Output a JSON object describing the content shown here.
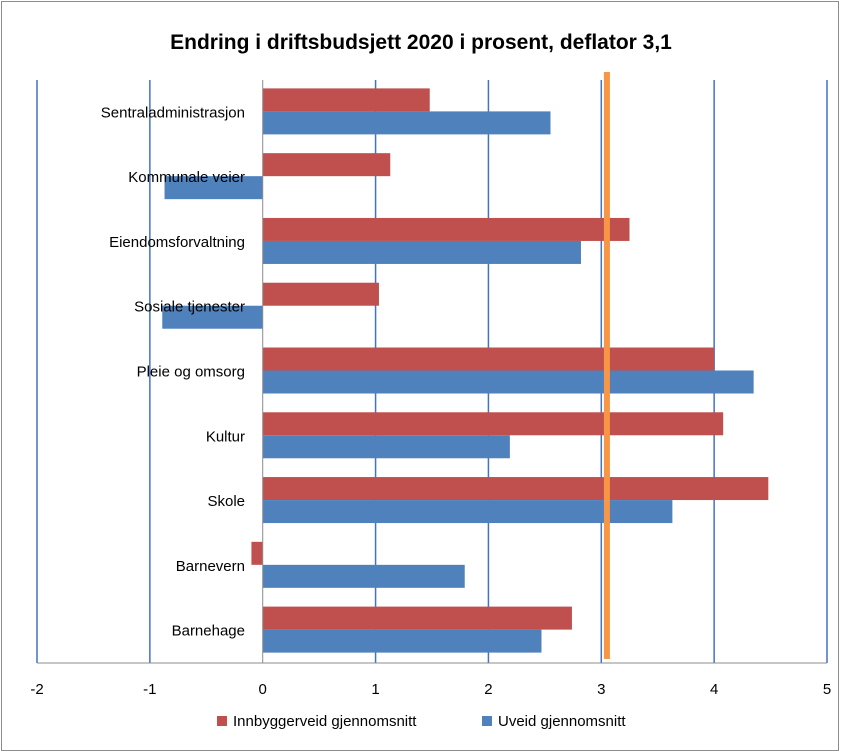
{
  "chart_data": {
    "type": "bar",
    "orientation": "horizontal",
    "title": "Endring i driftsbudsjett 2020 i prosent, deflator 3,1",
    "xlabel": "",
    "ylabel": "",
    "xlim": [
      -2,
      5
    ],
    "x_ticks": [
      "-2",
      "-1",
      "0",
      "1",
      "2",
      "3",
      "4",
      "5"
    ],
    "categories": [
      "Sentraladministrasjon",
      "Kommunale veier",
      "Eiendomsforvaltning",
      "Sosiale tjenester",
      "Pleie og omsorg",
      "Kultur",
      "Skole",
      "Barnevern",
      "Barnehage"
    ],
    "series": [
      {
        "name": "Innbyggerveid gjennomsnitt",
        "color": "#c0504d",
        "values": [
          1.48,
          1.13,
          3.25,
          1.03,
          4.0,
          4.08,
          4.48,
          -0.1,
          2.74
        ]
      },
      {
        "name": "Uveid gjennomsnitt",
        "color": "#4f81bd",
        "values": [
          2.55,
          -0.87,
          2.82,
          -0.89,
          4.35,
          2.19,
          3.63,
          1.79,
          2.47
        ]
      }
    ],
    "reference_line": {
      "value": 3.05,
      "color": "#f79646"
    },
    "grid": true,
    "gridline_color": "#4472c4",
    "legend_position": "bottom"
  }
}
